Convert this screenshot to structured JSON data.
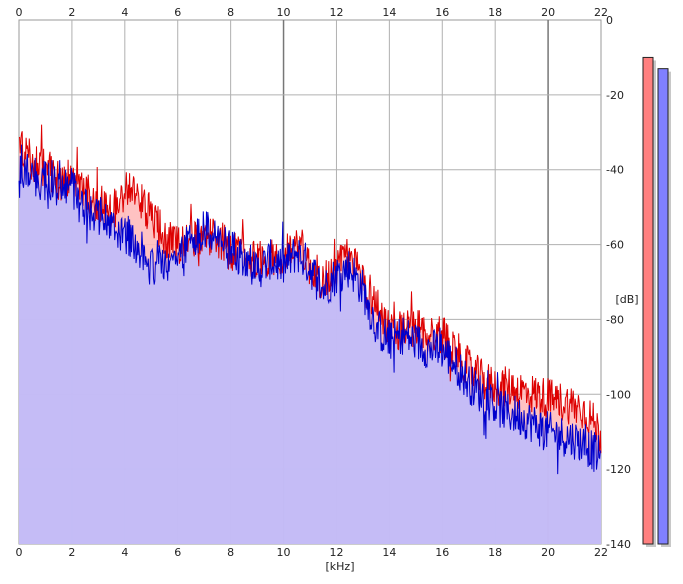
{
  "chart_data": {
    "type": "area",
    "title": "",
    "xlabel": "[kHz]",
    "ylabel": "[dB]",
    "xlim": [
      0,
      22
    ],
    "ylim": [
      -140,
      0
    ],
    "x_ticks": [
      0,
      2,
      4,
      6,
      8,
      10,
      12,
      14,
      16,
      18,
      20,
      22
    ],
    "x_tick_labels": [
      "0",
      "2",
      "4",
      "6",
      "8",
      "10",
      "12",
      "14",
      "16",
      "18",
      "20",
      "22"
    ],
    "y_ticks": [
      0,
      -20,
      -40,
      -60,
      -80,
      -100,
      -120,
      -140
    ],
    "y_tick_labels": [
      "0",
      "-20",
      "-40",
      "-60",
      "-80",
      "-100",
      "-120",
      "-140"
    ],
    "grid": true,
    "x_ticks_top": true,
    "y_axis_side": "right",
    "series": [
      {
        "color": "#dd0000",
        "fill": "#ffbbbb",
        "x": [
          0,
          0.5,
          1,
          1.5,
          2,
          2.5,
          3,
          3.5,
          4,
          4.5,
          5,
          5.5,
          6,
          6.5,
          7,
          7.5,
          8,
          8.5,
          9,
          9.5,
          10,
          10.5,
          11,
          11.5,
          12,
          12.5,
          13,
          13.5,
          14,
          14.5,
          15,
          15.5,
          16,
          16.5,
          17,
          17.5,
          18,
          18.5,
          19,
          19.5,
          20,
          20.5,
          21,
          21.5,
          22
        ],
        "values": [
          -34,
          -38,
          -40,
          -43,
          -42,
          -46,
          -49,
          -52,
          -45,
          -47,
          -52,
          -58,
          -60,
          -58,
          -58,
          -58,
          -62,
          -62,
          -64,
          -63,
          -64,
          -58,
          -66,
          -70,
          -66,
          -63,
          -69,
          -76,
          -82,
          -83,
          -82,
          -84,
          -84,
          -88,
          -93,
          -96,
          -98,
          -98,
          -99,
          -100,
          -101,
          -102,
          -103,
          -105,
          -111
        ]
      },
      {
        "color": "#0000cc",
        "fill": "#bbbbff",
        "x": [
          0,
          0.5,
          1,
          1.5,
          2,
          2.5,
          3,
          3.5,
          4,
          4.5,
          5,
          5.5,
          6,
          6.5,
          7,
          7.5,
          8,
          8.5,
          9,
          9.5,
          10,
          10.5,
          11,
          11.5,
          12,
          12.5,
          13,
          13.5,
          14,
          14.5,
          15,
          15.5,
          16,
          16.5,
          17,
          17.5,
          18,
          18.5,
          19,
          19.5,
          20,
          20.5,
          21,
          21.5,
          22
        ],
        "values": [
          -38,
          -42,
          -43,
          -45,
          -45,
          -50,
          -52,
          -56,
          -57,
          -60,
          -66,
          -64,
          -64,
          -58,
          -56,
          -58,
          -62,
          -63,
          -67,
          -64,
          -66,
          -62,
          -66,
          -72,
          -68,
          -66,
          -72,
          -82,
          -86,
          -84,
          -86,
          -88,
          -88,
          -92,
          -97,
          -100,
          -103,
          -105,
          -106,
          -108,
          -110,
          -111,
          -112,
          -114,
          -117
        ]
      }
    ]
  },
  "level_meters": [
    {
      "color": "#ff8080",
      "top_db": -10
    },
    {
      "color": "#8080ff",
      "top_db": -13
    }
  ]
}
